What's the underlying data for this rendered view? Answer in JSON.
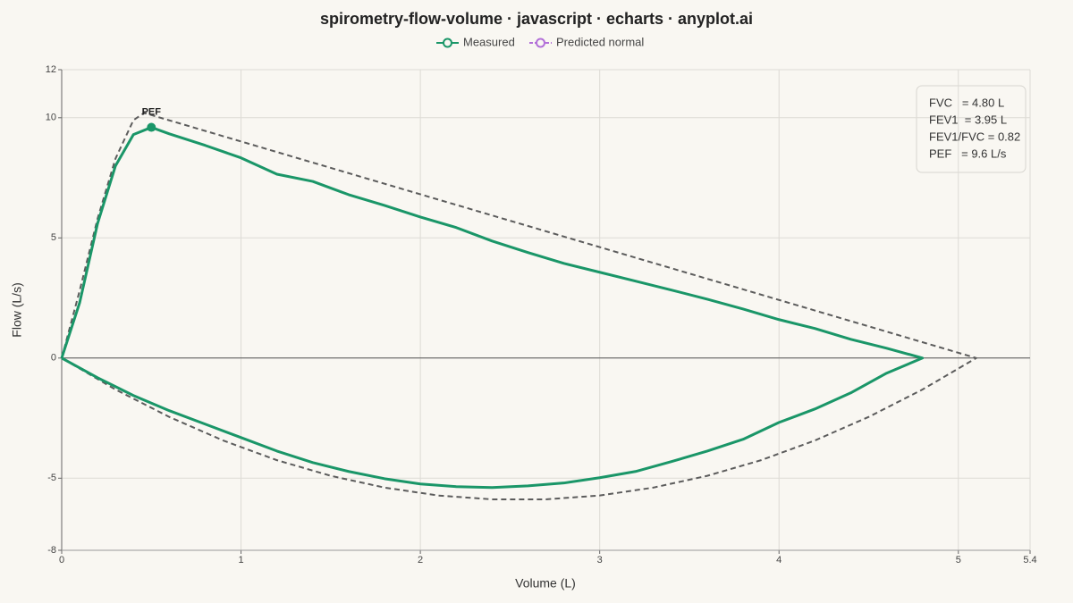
{
  "chart_data": {
    "type": "line",
    "title": "spirometry-flow-volume · javascript · echarts · anyplot.ai",
    "x_label": "Volume (L)",
    "y_label": "Flow (L/s)",
    "xlim": [
      0,
      5.4
    ],
    "ylim": [
      -8,
      12
    ],
    "xticks": [
      0,
      1,
      2,
      3,
      4,
      5,
      5.4
    ],
    "yticks": [
      -8,
      -5,
      0,
      5,
      10,
      12
    ],
    "grid": true,
    "legend": "top",
    "series": [
      {
        "name": "Measured",
        "color": "#1a9668",
        "dashed": false,
        "x": [
          0,
          0.1,
          0.2,
          0.3,
          0.4,
          0.5,
          0.6,
          0.8,
          1.0,
          1.2,
          1.4,
          1.6,
          1.8,
          2.0,
          2.2,
          2.4,
          2.6,
          2.8,
          3.0,
          3.2,
          3.4,
          3.6,
          3.8,
          4.0,
          4.2,
          4.4,
          4.6,
          4.8,
          4.6,
          4.4,
          4.2,
          4.0,
          3.8,
          3.6,
          3.4,
          3.2,
          3.0,
          2.8,
          2.6,
          2.4,
          2.2,
          2.0,
          1.8,
          1.6,
          1.4,
          1.2,
          1.0,
          0.8,
          0.6,
          0.4,
          0.2,
          0
        ],
        "values": [
          0,
          2.3,
          5.6,
          8.0,
          9.3,
          9.6,
          9.33,
          8.85,
          8.33,
          7.65,
          7.35,
          6.8,
          6.35,
          5.87,
          5.43,
          4.87,
          4.39,
          3.94,
          3.57,
          3.2,
          2.83,
          2.45,
          2.04,
          1.6,
          1.23,
          0.78,
          0.41,
          0,
          -0.63,
          -1.45,
          -2.12,
          -2.68,
          -3.38,
          -3.87,
          -4.31,
          -4.72,
          -4.98,
          -5.2,
          -5.32,
          -5.39,
          -5.35,
          -5.24,
          -5.02,
          -4.72,
          -4.35,
          -3.87,
          -3.31,
          -2.75,
          -2.19,
          -1.56,
          -0.82,
          0
        ]
      },
      {
        "name": "Predicted normal",
        "color": "#5c5c5c",
        "legend_color": "#b26fd8",
        "dashed": true,
        "x": [
          0,
          0.1,
          0.2,
          0.3,
          0.4,
          0.46,
          5.1,
          4.8,
          4.5,
          4.2,
          3.9,
          3.6,
          3.3,
          3.0,
          2.7,
          2.4,
          2.1,
          1.8,
          1.5,
          1.2,
          0.9,
          0.6,
          0.3,
          0
        ],
        "values": [
          0,
          2.8,
          5.8,
          8.3,
          9.9,
          10.2,
          0,
          -1.31,
          -2.45,
          -3.43,
          -4.25,
          -4.9,
          -5.39,
          -5.72,
          -5.88,
          -5.88,
          -5.72,
          -5.39,
          -4.9,
          -4.25,
          -3.43,
          -2.45,
          -1.31,
          0
        ]
      }
    ],
    "annotation": {
      "text": "PEF",
      "x": 0.5,
      "y": 9.6
    },
    "stats": [
      "FVC   = 4.80 L",
      "FEV1  = 3.95 L",
      "FEV1/FVC = 0.82",
      "PEF   = 9.6 L/s"
    ]
  }
}
